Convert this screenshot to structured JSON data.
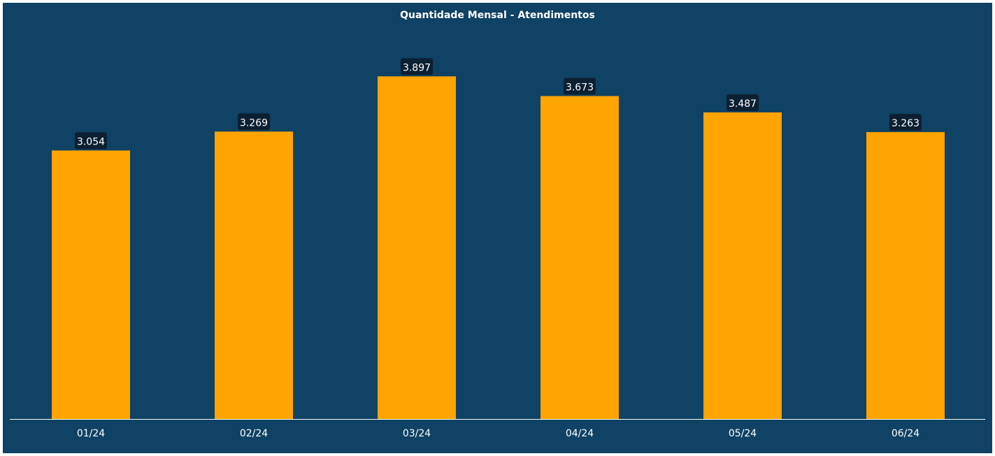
{
  "chart_data": {
    "type": "bar",
    "title": "Quantidade Mensal - Atendimentos",
    "xlabel": "",
    "ylabel": "",
    "categories": [
      "01/24",
      "02/24",
      "03/24",
      "04/24",
      "05/24",
      "06/24"
    ],
    "values": [
      3054,
      3269,
      3897,
      3673,
      3487,
      3263
    ],
    "value_labels": [
      "3.054",
      "3.269",
      "3.897",
      "3.673",
      "3.487",
      "3.263"
    ],
    "ylim": [
      0,
      4400
    ],
    "grid": false,
    "legend": "none"
  },
  "colors": {
    "background": "#0f4264",
    "bar": "#ffa400",
    "label_box": "#0c2033",
    "axis": "#ffffff",
    "text": "#ffffff"
  }
}
